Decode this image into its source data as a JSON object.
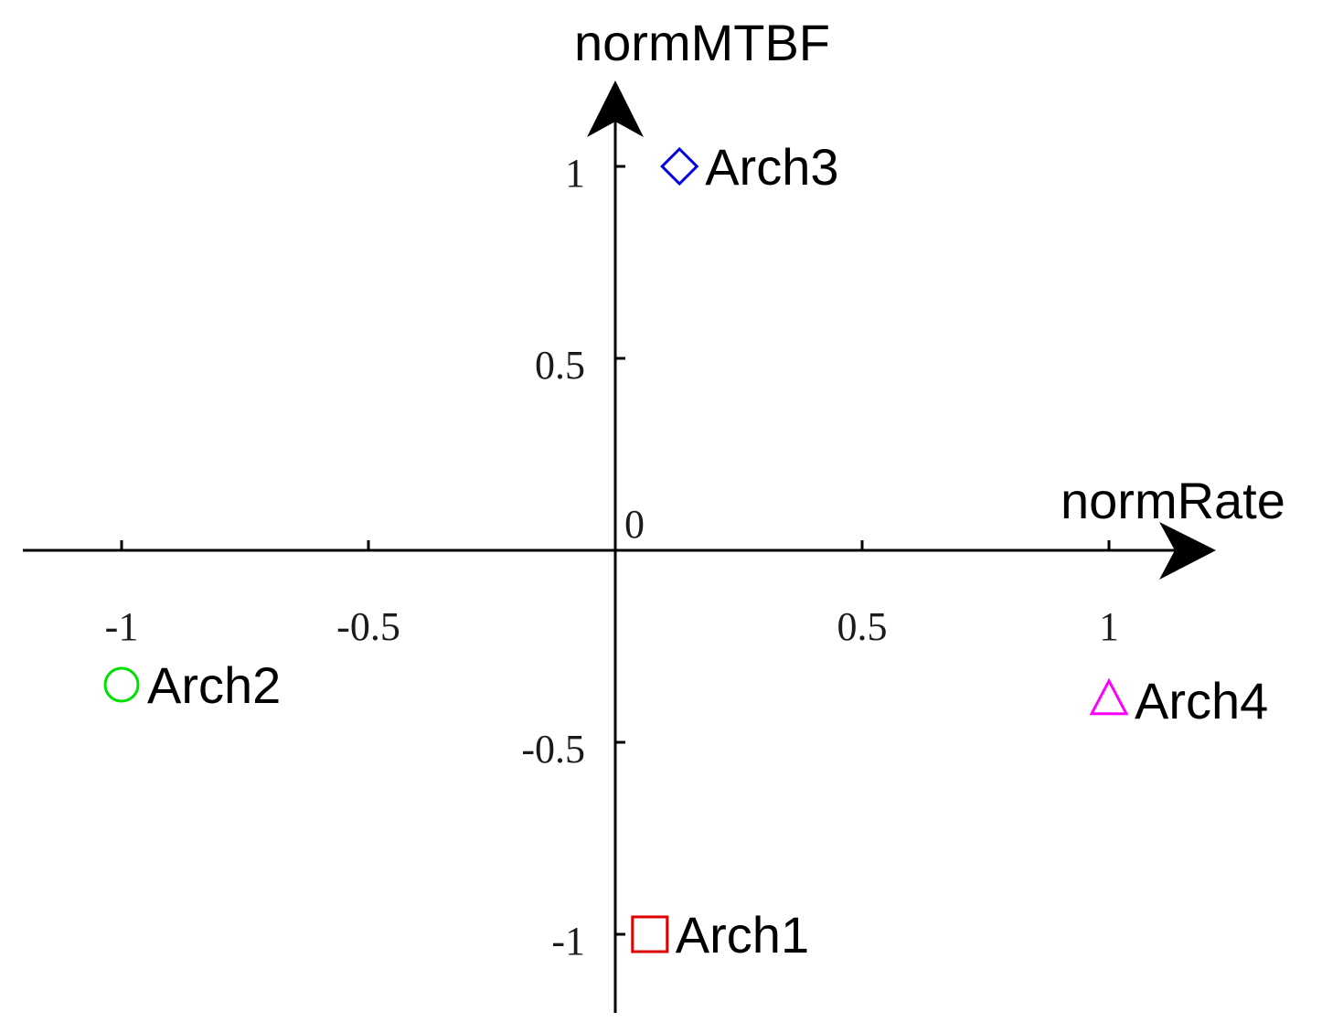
{
  "chart_data": {
    "type": "scatter",
    "title": "",
    "xlabel": "normRate",
    "ylabel": "normMTBF",
    "xlim": [
      -1.2,
      1.2
    ],
    "ylim": [
      -1.2,
      1.2
    ],
    "grid": false,
    "origin_label": "0",
    "x_ticks": [
      {
        "value": -1,
        "label": "-1"
      },
      {
        "value": -0.5,
        "label": "-0.5"
      },
      {
        "value": 0.5,
        "label": "0.5"
      },
      {
        "value": 1,
        "label": "1"
      }
    ],
    "y_ticks": [
      {
        "value": 1,
        "label": "1"
      },
      {
        "value": 0.5,
        "label": "0.5"
      },
      {
        "value": -0.5,
        "label": "-0.5"
      },
      {
        "value": -1,
        "label": "-1"
      }
    ],
    "points": [
      {
        "label": "Arch1",
        "x": 0.07,
        "y": -1.0,
        "marker": "square",
        "color": "#e00000"
      },
      {
        "label": "Arch2",
        "x": -1.0,
        "y": -0.35,
        "marker": "circle",
        "color": "#00e000"
      },
      {
        "label": "Arch3",
        "x": 0.13,
        "y": 1.0,
        "marker": "diamond",
        "color": "#0000e0"
      },
      {
        "label": "Arch4",
        "x": 1.0,
        "y": -0.39,
        "marker": "triangle",
        "color": "#ff00ff"
      }
    ]
  }
}
